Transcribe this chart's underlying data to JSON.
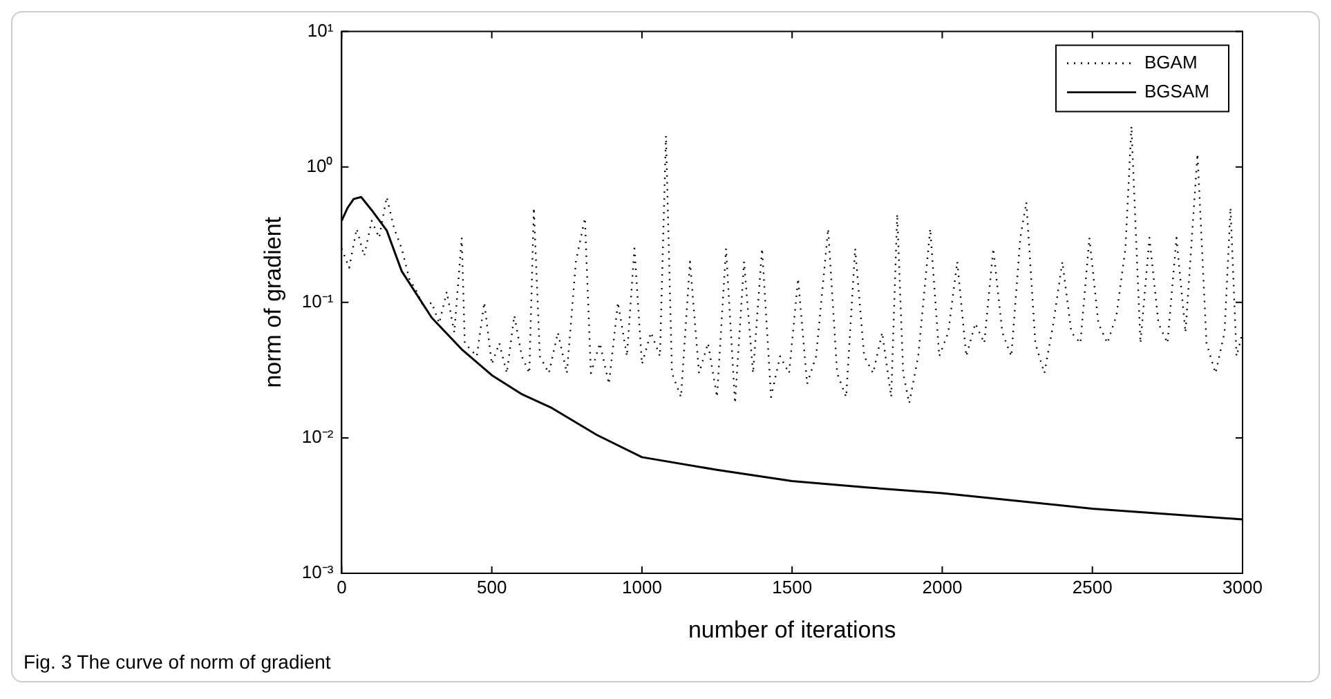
{
  "chart_data": {
    "type": "line",
    "xlabel": "number of iterations",
    "ylabel": "norm of gradient",
    "log": "y",
    "grid": false,
    "legend": "top right",
    "marker": "none",
    "xlim": [
      0,
      3000
    ],
    "xticks": [
      0,
      500,
      1000,
      1500,
      2000,
      2500,
      3000
    ],
    "ylim": [
      0.001,
      10
    ],
    "yticks": [
      {
        "value": 0.001,
        "label": "10⁻³"
      },
      {
        "value": 0.01,
        "label": "10⁻²"
      },
      {
        "value": 0.1,
        "label": "10⁻¹"
      },
      {
        "value": 1,
        "label": "10⁰"
      },
      {
        "value": 10,
        "label": "10¹"
      }
    ],
    "annotations": [
      "Fig. 3 The curve of norm of gradient"
    ],
    "series": [
      {
        "name": "BGAM",
        "color": "#000000",
        "line_style": "dotted",
        "x": [
          0,
          25,
          50,
          75,
          100,
          125,
          150,
          175,
          200,
          225,
          250,
          275,
          300,
          325,
          350,
          375,
          400,
          410,
          450,
          475,
          500,
          525,
          550,
          575,
          600,
          625,
          640,
          660,
          690,
          720,
          750,
          780,
          810,
          830,
          860,
          890,
          920,
          950,
          975,
          1000,
          1030,
          1060,
          1080,
          1100,
          1130,
          1160,
          1190,
          1220,
          1250,
          1280,
          1310,
          1340,
          1370,
          1400,
          1430,
          1460,
          1490,
          1520,
          1550,
          1580,
          1620,
          1650,
          1680,
          1710,
          1740,
          1770,
          1800,
          1830,
          1850,
          1870,
          1890,
          1920,
          1960,
          1990,
          2020,
          2050,
          2080,
          2110,
          2140,
          2170,
          2200,
          2230,
          2260,
          2280,
          2310,
          2340,
          2370,
          2400,
          2430,
          2460,
          2490,
          2520,
          2550,
          2580,
          2610,
          2630,
          2660,
          2690,
          2720,
          2750,
          2780,
          2810,
          2850,
          2880,
          2910,
          2940,
          2960,
          2980,
          3000
        ],
        "values": [
          0.25,
          0.18,
          0.35,
          0.22,
          0.4,
          0.3,
          0.6,
          0.35,
          0.25,
          0.15,
          0.12,
          0.09,
          0.1,
          0.07,
          0.12,
          0.06,
          0.3,
          0.05,
          0.04,
          0.1,
          0.035,
          0.05,
          0.03,
          0.08,
          0.04,
          0.03,
          0.5,
          0.04,
          0.03,
          0.06,
          0.03,
          0.2,
          0.42,
          0.03,
          0.05,
          0.025,
          0.1,
          0.04,
          0.25,
          0.035,
          0.06,
          0.04,
          1.7,
          0.03,
          0.02,
          0.2,
          0.03,
          0.05,
          0.02,
          0.25,
          0.018,
          0.2,
          0.03,
          0.25,
          0.02,
          0.04,
          0.03,
          0.15,
          0.025,
          0.04,
          0.35,
          0.03,
          0.02,
          0.25,
          0.04,
          0.03,
          0.06,
          0.02,
          0.45,
          0.03,
          0.018,
          0.04,
          0.35,
          0.04,
          0.06,
          0.2,
          0.04,
          0.07,
          0.05,
          0.25,
          0.06,
          0.04,
          0.3,
          0.55,
          0.05,
          0.03,
          0.07,
          0.2,
          0.06,
          0.05,
          0.3,
          0.07,
          0.05,
          0.08,
          0.25,
          2.0,
          0.05,
          0.3,
          0.07,
          0.05,
          0.3,
          0.06,
          1.25,
          0.05,
          0.03,
          0.06,
          0.5,
          0.04,
          0.06
        ]
      },
      {
        "name": "BGSAM",
        "color": "#000000",
        "line_style": "solid",
        "x": [
          0,
          20,
          40,
          65,
          100,
          150,
          200,
          300,
          400,
          500,
          600,
          700,
          850,
          1000,
          1250,
          1500,
          1750,
          2000,
          2500,
          3000
        ],
        "values": [
          0.4,
          0.5,
          0.58,
          0.6,
          0.48,
          0.34,
          0.17,
          0.077,
          0.045,
          0.029,
          0.021,
          0.0166,
          0.0105,
          0.0072,
          0.0058,
          0.0048,
          0.0043,
          0.0039,
          0.003,
          0.0025
        ]
      }
    ]
  }
}
